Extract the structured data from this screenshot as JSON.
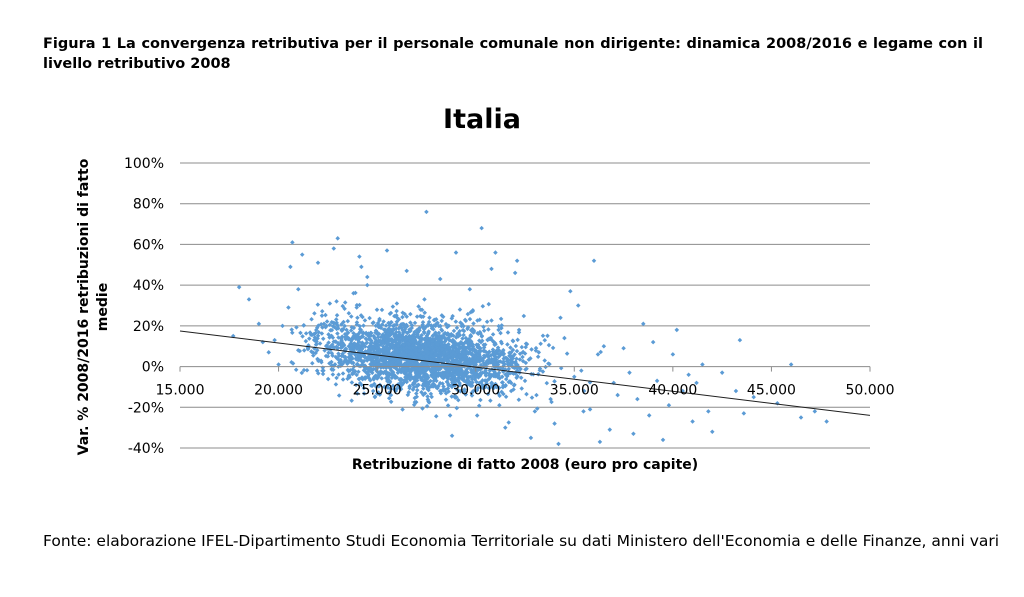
{
  "figure_caption": "Figura 1 La convergenza retributiva per il personale comunale non dirigente: dinamica 2008/2016 e legame con il livello retributivo 2008",
  "source_note": "Fonte: elaborazione IFEL-Dipartimento Studi Economia Territoriale su dati Ministero dell'Economia e delle Finanze, anni vari",
  "colors": {
    "points": "#5b9bd5",
    "trendline": "#1f1f1f",
    "gridline": "#8c8c8c"
  },
  "chart_data": {
    "type": "scatter",
    "title": "Italia",
    "xlabel": "Retribuzione di fatto 2008 (euro pro capite)",
    "ylabel": "Var. % 2008/2016 retribuzioni di fatto medie",
    "xlim": [
      15000,
      50000
    ],
    "ylim": [
      -40,
      100
    ],
    "x_ticks": [
      15000,
      20000,
      25000,
      30000,
      35000,
      40000,
      45000,
      50000
    ],
    "x_tick_labels": [
      "15.000",
      "20.000",
      "25.000",
      "30.000",
      "35.000",
      "40.000",
      "45.000",
      "50.000"
    ],
    "y_ticks": [
      -40,
      -20,
      0,
      20,
      40,
      60,
      80,
      100
    ],
    "y_tick_labels": [
      "-40%",
      "-20%",
      "0%",
      "20%",
      "40%",
      "60%",
      "80%",
      "100%"
    ],
    "grid": "horizontal",
    "legend": "none",
    "trendline": {
      "type": "linear",
      "points": [
        [
          15000,
          17.5
        ],
        [
          50000,
          -24
        ]
      ]
    },
    "series": [
      {
        "points": [
          [
            17700,
            15
          ],
          [
            18000,
            39
          ],
          [
            18500,
            33
          ],
          [
            19000,
            21
          ],
          [
            19200,
            12
          ],
          [
            19500,
            7
          ],
          [
            19800,
            13
          ],
          [
            20000,
            1
          ],
          [
            20200,
            20
          ],
          [
            20500,
            29
          ],
          [
            20600,
            49
          ],
          [
            20700,
            61
          ],
          [
            21000,
            38
          ],
          [
            21200,
            55
          ],
          [
            21500,
            9
          ],
          [
            21800,
            16
          ],
          [
            22000,
            51
          ],
          [
            22200,
            25
          ],
          [
            22500,
            5
          ],
          [
            22600,
            31
          ],
          [
            22800,
            58
          ],
          [
            23000,
            63
          ],
          [
            23200,
            18
          ],
          [
            23500,
            -6
          ],
          [
            23800,
            36
          ],
          [
            24000,
            24
          ],
          [
            24100,
            54
          ],
          [
            24200,
            49
          ],
          [
            24500,
            44
          ],
          [
            24500,
            40
          ],
          [
            24800,
            -12
          ],
          [
            25000,
            4
          ],
          [
            25200,
            19
          ],
          [
            25500,
            57
          ],
          [
            25700,
            -14
          ],
          [
            25800,
            9
          ],
          [
            26000,
            22
          ],
          [
            26000,
            31
          ],
          [
            26200,
            -8
          ],
          [
            26500,
            47
          ],
          [
            26800,
            13
          ],
          [
            27000,
            2
          ],
          [
            27200,
            28
          ],
          [
            27400,
            33
          ],
          [
            27500,
            76
          ],
          [
            27600,
            -17
          ],
          [
            27800,
            0
          ],
          [
            28000,
            21
          ],
          [
            28200,
            43
          ],
          [
            28500,
            8
          ],
          [
            28700,
            -24
          ],
          [
            28800,
            -34
          ],
          [
            29000,
            56
          ],
          [
            29200,
            28
          ],
          [
            29500,
            14
          ],
          [
            29700,
            38
          ],
          [
            30000,
            1
          ],
          [
            30200,
            23
          ],
          [
            30300,
            68
          ],
          [
            30500,
            -10
          ],
          [
            30800,
            48
          ],
          [
            31000,
            56
          ],
          [
            31200,
            -19
          ],
          [
            31500,
            -30
          ],
          [
            31800,
            -12
          ],
          [
            32000,
            46
          ],
          [
            32100,
            52
          ],
          [
            32200,
            18
          ],
          [
            32500,
            -7
          ],
          [
            32600,
            11
          ],
          [
            32800,
            -35
          ],
          [
            33000,
            -22
          ],
          [
            33200,
            7
          ],
          [
            33500,
            3
          ],
          [
            33800,
            -16
          ],
          [
            34000,
            -28
          ],
          [
            34300,
            24
          ],
          [
            34500,
            14
          ],
          [
            34800,
            37
          ],
          [
            35000,
            -5
          ],
          [
            35200,
            30
          ],
          [
            35500,
            -12
          ],
          [
            35800,
            -21
          ],
          [
            36000,
            52
          ],
          [
            36200,
            6
          ],
          [
            36500,
            10
          ],
          [
            36800,
            -31
          ],
          [
            37000,
            -8
          ],
          [
            37200,
            -14
          ],
          [
            37500,
            9
          ],
          [
            37800,
            -3
          ],
          [
            38000,
            -33
          ],
          [
            38200,
            -16
          ],
          [
            38500,
            21
          ],
          [
            38800,
            -24
          ],
          [
            39000,
            12
          ],
          [
            39200,
            -7
          ],
          [
            39500,
            -36
          ],
          [
            39800,
            -19
          ],
          [
            40000,
            6
          ],
          [
            40200,
            18
          ],
          [
            40500,
            -12
          ],
          [
            40800,
            -4
          ],
          [
            41000,
            -27
          ],
          [
            41200,
            -8
          ],
          [
            41500,
            1
          ],
          [
            41800,
            -22
          ],
          [
            42000,
            -32
          ],
          [
            42500,
            -3
          ],
          [
            43200,
            -12
          ],
          [
            43400,
            13
          ],
          [
            43600,
            -23
          ],
          [
            44100,
            -15
          ],
          [
            45300,
            -18
          ],
          [
            46000,
            1
          ],
          [
            46500,
            -25
          ],
          [
            47200,
            -22
          ],
          [
            47800,
            -27
          ],
          [
            34200,
            -38
          ],
          [
            36300,
            -37
          ]
        ],
        "cluster_note_omitted": true
      }
    ]
  }
}
